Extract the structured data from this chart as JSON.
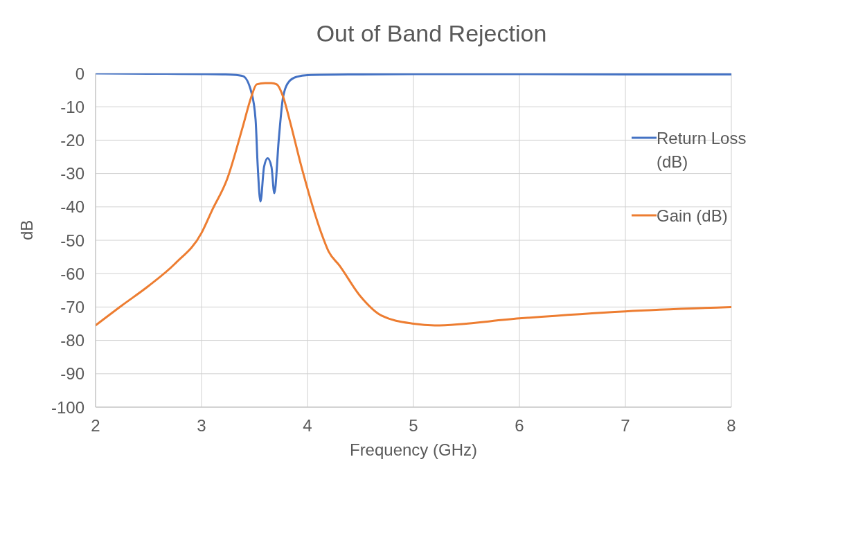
{
  "chart_data": {
    "type": "line",
    "title": "Out of Band Rejection",
    "xlabel": "Frequency (GHz)",
    "ylabel": "dB",
    "xlim": [
      2,
      8
    ],
    "xticks": [
      2,
      3,
      4,
      5,
      6,
      7,
      8
    ],
    "ylim": [
      -100,
      0
    ],
    "yticks": [
      -100,
      -90,
      -80,
      -70,
      -60,
      -50,
      -40,
      -30,
      -20,
      -10,
      0
    ],
    "grid": true,
    "legend": "right",
    "marker": "none",
    "line_style": "solid",
    "series": [
      {
        "name": "Return Loss (dB)",
        "color": "#4472c4",
        "x": [
          2,
          2.5,
          3,
          3.2,
          3.3,
          3.39,
          3.47,
          3.51,
          3.53,
          3.556,
          3.59,
          3.624,
          3.66,
          3.687,
          3.73,
          3.77,
          3.83,
          3.9,
          4,
          4.5,
          5,
          6,
          7,
          8
        ],
        "values": [
          0,
          -0.1,
          -0.2,
          -0.3,
          -0.4,
          -0.8,
          -5.6,
          -13.8,
          -27.6,
          -38.4,
          -28,
          -25.4,
          -28,
          -35.9,
          -19.4,
          -7,
          -2.3,
          -1,
          -0.5,
          -0.3,
          -0.2,
          -0.2,
          -0.3,
          -0.3
        ]
      },
      {
        "name": "Gain (dB)",
        "color": "#ed7d31",
        "x": [
          2,
          2.25,
          2.5,
          2.75,
          3,
          3.1,
          3.24,
          3.39,
          3.47,
          3.52,
          3.6,
          3.66,
          3.71,
          3.77,
          3.83,
          3.94,
          4.13,
          4.2,
          4.3,
          4.5,
          4.7,
          5,
          5.2,
          6,
          7,
          8
        ],
        "values": [
          -75.5,
          -69.5,
          -63.7,
          -57,
          -47.8,
          -41,
          -31.8,
          -15.9,
          -7,
          -3.3,
          -2.9,
          -2.9,
          -3.3,
          -7,
          -13.8,
          -27.6,
          -47.8,
          -53.4,
          -57.5,
          -66.8,
          -72.6,
          -75,
          -75.5,
          -73.4,
          -71.3,
          -70
        ]
      }
    ]
  }
}
